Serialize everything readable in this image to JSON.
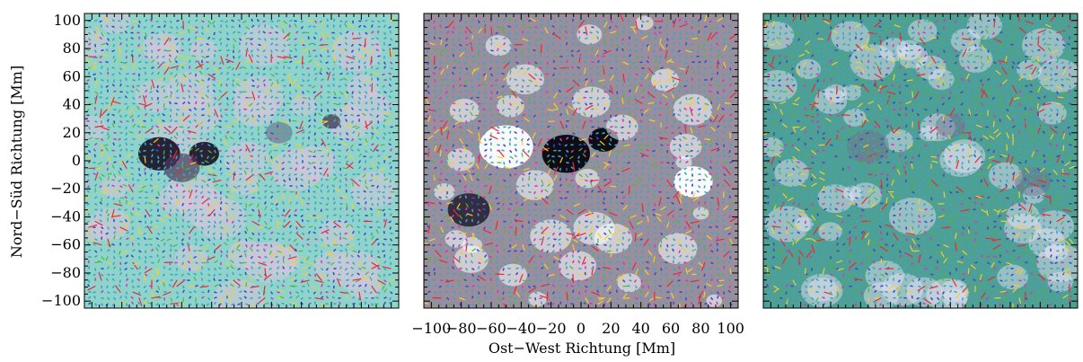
{
  "chart_data": [
    {
      "type": "heatmap",
      "panel": "left",
      "background": "continuum intensity map with flow arrows",
      "ylabel": "Nord−Süd Richtung [Mm]",
      "y_ticks": [
        "100",
        "80",
        "60",
        "40",
        "20",
        "0",
        "−20",
        "−40",
        "−60",
        "−80",
        "−100"
      ],
      "x_ticks": [],
      "xlim": [
        -105,
        105
      ],
      "ylim": [
        -105,
        105
      ],
      "arrow_colors": [
        "#e8283c",
        "#f0d030",
        "#48b848",
        "#3aa6c8",
        "#3050d0",
        "#c040c0"
      ],
      "base_color": "#8fd3cb"
    },
    {
      "type": "heatmap",
      "panel": "middle",
      "background": "magnetogram with flow arrows",
      "y_ticks": [],
      "x_ticks": [
        "−100",
        "−80",
        "−60",
        "−40",
        "−20",
        "0",
        "20",
        "40",
        "60",
        "80",
        "100"
      ],
      "xlabel": "Ost−West Richtung  [Mm]",
      "xlim": [
        -105,
        105
      ],
      "ylim": [
        -105,
        105
      ],
      "arrow_colors": [
        "#e8283c",
        "#f0d030",
        "#48b848",
        "#3aa6c8",
        "#3050d0",
        "#c040c0"
      ],
      "base_color": "#9a8e9c"
    },
    {
      "type": "heatmap",
      "panel": "right",
      "background": "flow field with arrows",
      "y_ticks": [],
      "x_ticks": [],
      "xlim": [
        -105,
        105
      ],
      "ylim": [
        -105,
        105
      ],
      "arrow_colors": [
        "#e8283c",
        "#f0d030",
        "#48b848",
        "#3aa6c8",
        "#3050d0",
        "#c040c0"
      ],
      "base_color": "#4f9f92"
    }
  ]
}
